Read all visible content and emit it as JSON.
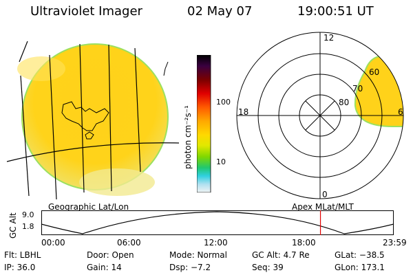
{
  "header": {
    "title": "Ultraviolet Imager",
    "date": "02 May 07",
    "time": "19:00:51 UT"
  },
  "colorbar": {
    "unit_label": "photon cm⁻²s⁻¹",
    "tick_100": "100",
    "tick_10": "10",
    "colors": [
      "#000000",
      "#3a0040",
      "#6b0000",
      "#c80000",
      "#ff3000",
      "#ff7a00",
      "#ffb000",
      "#ffd800",
      "#e8e800",
      "#b8e000",
      "#60d000",
      "#00c8a0",
      "#40d0e0",
      "#a0e0f0",
      "#e0f0f0"
    ]
  },
  "polar": {
    "label_top": "12",
    "label_left": "18",
    "label_right": "6",
    "label_bottom": "0",
    "ring_80": "80",
    "ring_70": "70",
    "ring_60": "60"
  },
  "plot_labels": {
    "left": "Geographic Lat/Lon",
    "right": "Apex MLat/MLT"
  },
  "gc_plot": {
    "ylabel": "GC Alt",
    "ymax": "9.0",
    "ymin": "1.8",
    "x_ticks": [
      "00:00",
      "06:00",
      "12:00",
      "18:00",
      "23:59"
    ],
    "marker_time_hours": 19.01,
    "marker_color": "#e00000"
  },
  "footer": {
    "flt": "Flt: LBHL",
    "door": "Door: Open",
    "mode": "Mode: Normal",
    "gc_alt": "GC Alt: 4.7 Re",
    "glat": "GLat: −38.5",
    "ip": "IP: 36.0",
    "gain": "Gain: 14",
    "dsp": "Dsp:    −7.2",
    "seq": "Seq: 39",
    "glon": "GLon: 173.1"
  }
}
